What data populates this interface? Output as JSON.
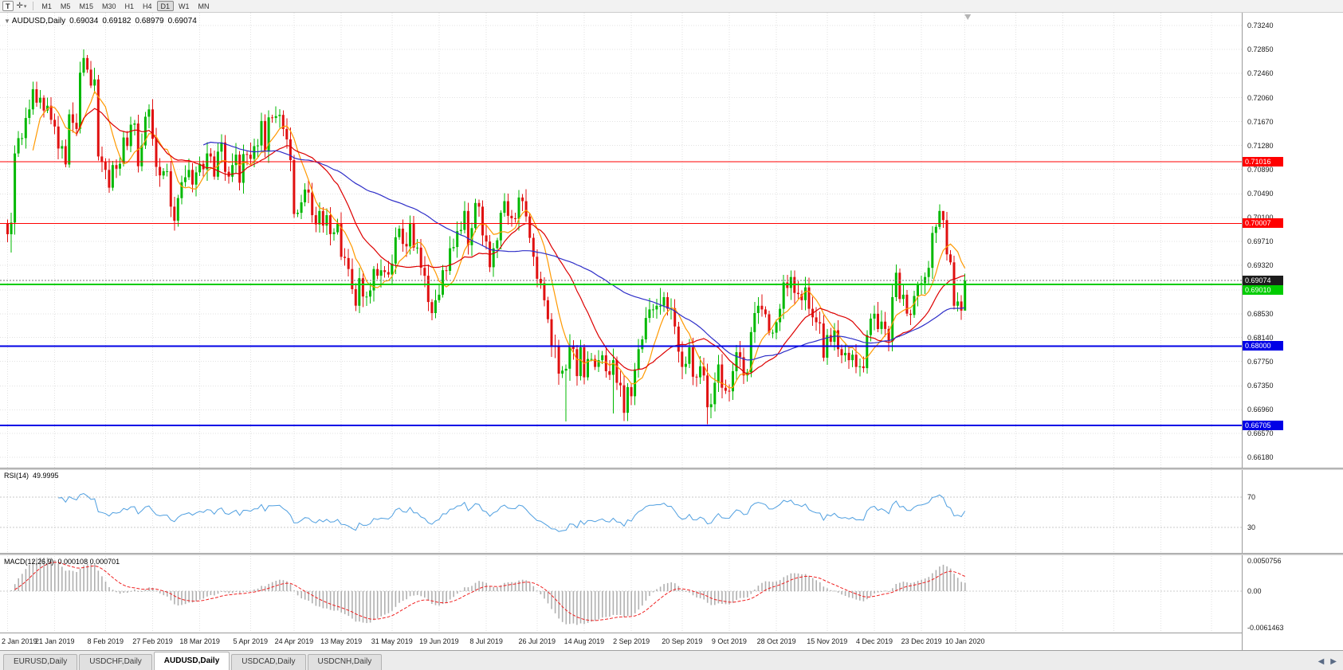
{
  "toolbar": {
    "tool_button_label": "T",
    "timeframes": [
      "M1",
      "M5",
      "M15",
      "M30",
      "H1",
      "H4",
      "D1",
      "W1",
      "MN"
    ],
    "active_timeframe": "D1"
  },
  "icons": {
    "crosshair_glyph": "✛",
    "caret_glyph": "▾",
    "collapse_glyph": "▼",
    "scroll_left_glyph": "◀",
    "scroll_right_glyph": "▶"
  },
  "chart_header": {
    "symbol": "AUDUSD,Daily",
    "open": "0.69034",
    "high": "0.69182",
    "low": "0.68979",
    "close": "0.69074"
  },
  "rsi_panel": {
    "name": "RSI(14)",
    "value": "49.9995",
    "level_labels": [
      "70",
      "30"
    ]
  },
  "macd_panel": {
    "name": "MACD(12,26,9)",
    "values": "0.000108 0.000701"
  },
  "tabs": {
    "items": [
      {
        "label": "EURUSD,Daily",
        "active": false
      },
      {
        "label": "USDCHF,Daily",
        "active": false
      },
      {
        "label": "AUDUSD,Daily",
        "active": true
      },
      {
        "label": "USDCAD,Daily",
        "active": false
      },
      {
        "label": "USDCNH,Daily",
        "active": false
      }
    ]
  },
  "colors": {
    "up": "#00b800",
    "down": "#e01010",
    "grid": "#e2e2e2",
    "rsi_line": "#4f9fe0",
    "macd_hist": "#b0b0b0",
    "macd_signal": "#f02020",
    "bid_line": "#777777",
    "bid_tag": "#1c1c1c"
  },
  "chart_data": {
    "type": "candlestick",
    "symbol": "AUDUSD",
    "timeframe": "Daily",
    "title": "AUDUSD,Daily 0.69034 0.69182 0.68979 0.69074",
    "price_range": [
      0.66,
      0.7345
    ],
    "y_axis_labels": [
      "0.73240",
      "0.72850",
      "0.72460",
      "0.72060",
      "0.71670",
      "0.71280",
      "0.70890",
      "0.70490",
      "0.70100",
      "0.69710",
      "0.69320",
      "0.68920",
      "0.68530",
      "0.68140",
      "0.67750",
      "0.67350",
      "0.66960",
      "0.66570",
      "0.66180"
    ],
    "x_labels": [
      {
        "text": "2 Jan 2019",
        "day": 0
      },
      {
        "text": "21 Jan 2019",
        "day": 13
      },
      {
        "text": "8 Feb 2019",
        "day": 27
      },
      {
        "text": "27 Feb 2019",
        "day": 40
      },
      {
        "text": "18 Mar 2019",
        "day": 53
      },
      {
        "text": "5 Apr 2019",
        "day": 67
      },
      {
        "text": "24 Apr 2019",
        "day": 79
      },
      {
        "text": "13 May 2019",
        "day": 92
      },
      {
        "text": "31 May 2019",
        "day": 106
      },
      {
        "text": "19 Jun 2019",
        "day": 119
      },
      {
        "text": "8 Jul 2019",
        "day": 132
      },
      {
        "text": "26 Jul 2019",
        "day": 146
      },
      {
        "text": "14 Aug 2019",
        "day": 159
      },
      {
        "text": "2 Sep 2019",
        "day": 172
      },
      {
        "text": "20 Sep 2019",
        "day": 186
      },
      {
        "text": "9 Oct 2019",
        "day": 199
      },
      {
        "text": "28 Oct 2019",
        "day": 212
      },
      {
        "text": "15 Nov 2019",
        "day": 226
      },
      {
        "text": "4 Dec 2019",
        "day": 239
      },
      {
        "text": "23 Dec 2019",
        "day": 252
      },
      {
        "text": "10 Jan 2020",
        "day": 264
      }
    ],
    "future_grid_days": [
      278,
      291,
      305,
      318,
      332
    ],
    "first_open": 0.7,
    "closes": [
      0.6983,
      0.7002,
      0.7115,
      0.714,
      0.714,
      0.7173,
      0.7187,
      0.722,
      0.7198,
      0.7206,
      0.7185,
      0.7193,
      0.717,
      0.7159,
      0.7123,
      0.7127,
      0.7097,
      0.7179,
      0.7165,
      0.7155,
      0.7247,
      0.7271,
      0.7252,
      0.7226,
      0.7236,
      0.711,
      0.7101,
      0.7088,
      0.7059,
      0.7096,
      0.709,
      0.7098,
      0.7141,
      0.7127,
      0.7162,
      0.7164,
      0.7094,
      0.7128,
      0.7175,
      0.7187,
      0.7139,
      0.7093,
      0.7079,
      0.7086,
      0.7086,
      0.7028,
      0.7005,
      0.7042,
      0.7068,
      0.7076,
      0.7088,
      0.7064,
      0.7084,
      0.7098,
      0.7089,
      0.7115,
      0.711,
      0.7077,
      0.7118,
      0.7133,
      0.7085,
      0.7077,
      0.7096,
      0.7113,
      0.7067,
      0.7114,
      0.7113,
      0.7106,
      0.7127,
      0.7128,
      0.7168,
      0.7118,
      0.7174,
      0.7173,
      0.7176,
      0.7178,
      0.7155,
      0.7138,
      0.7104,
      0.7016,
      0.7018,
      0.7035,
      0.7056,
      0.7051,
      0.7014,
      0.6999,
      0.7021,
      0.6997,
      0.7014,
      0.6983,
      0.6986,
      0.7,
      0.6946,
      0.6944,
      0.6926,
      0.6893,
      0.6866,
      0.6911,
      0.6881,
      0.6881,
      0.6891,
      0.6926,
      0.6915,
      0.6924,
      0.6921,
      0.6917,
      0.6935,
      0.6978,
      0.6992,
      0.6967,
      0.6963,
      0.7,
      0.6961,
      0.6961,
      0.6928,
      0.6915,
      0.6872,
      0.6854,
      0.6875,
      0.6884,
      0.6924,
      0.6923,
      0.696,
      0.6962,
      0.6988,
      0.699,
      0.7021,
      0.6965,
      0.6993,
      0.7034,
      0.7028,
      0.6981,
      0.6971,
      0.6929,
      0.696,
      0.6973,
      0.7018,
      0.7037,
      0.7013,
      0.7009,
      0.7008,
      0.7043,
      0.7037,
      0.7012,
      0.6977,
      0.6946,
      0.691,
      0.6903,
      0.6875,
      0.6844,
      0.68,
      0.6799,
      0.6755,
      0.676,
      0.6763,
      0.68,
      0.6795,
      0.6751,
      0.6798,
      0.6749,
      0.6779,
      0.6779,
      0.6766,
      0.6777,
      0.6785,
      0.6759,
      0.6753,
      0.6777,
      0.674,
      0.6736,
      0.6691,
      0.6733,
      0.6718,
      0.6762,
      0.6795,
      0.6811,
      0.6846,
      0.686,
      0.686,
      0.6866,
      0.6866,
      0.688,
      0.6861,
      0.6862,
      0.6832,
      0.6791,
      0.6766,
      0.6771,
      0.6798,
      0.675,
      0.6749,
      0.6767,
      0.6752,
      0.67,
      0.6705,
      0.674,
      0.677,
      0.6732,
      0.6727,
      0.6726,
      0.6759,
      0.679,
      0.6782,
      0.6752,
      0.6757,
      0.6823,
      0.6854,
      0.6866,
      0.686,
      0.6852,
      0.6822,
      0.6822,
      0.6839,
      0.6861,
      0.6904,
      0.6895,
      0.6913,
      0.6887,
      0.6885,
      0.6875,
      0.6896,
      0.6861,
      0.6847,
      0.6839,
      0.6837,
      0.6781,
      0.6818,
      0.6807,
      0.6826,
      0.6795,
      0.6785,
      0.6789,
      0.6777,
      0.6786,
      0.6766,
      0.6767,
      0.6764,
      0.6818,
      0.6845,
      0.6853,
      0.6828,
      0.684,
      0.6828,
      0.6808,
      0.688,
      0.692,
      0.6877,
      0.6884,
      0.6853,
      0.6851,
      0.6882,
      0.69,
      0.6903,
      0.6913,
      0.6928,
      0.6985,
      0.6995,
      0.7021,
      0.7006,
      0.695,
      0.6937,
      0.6866,
      0.6873,
      0.6858,
      0.6907
    ],
    "wick_overrides": {
      "1": {
        "low": 0.6953
      },
      "21": {
        "high": 0.7285
      },
      "141": {
        "high": 0.7055
      },
      "154": {
        "low": 0.6677
      },
      "167": {
        "low": 0.669
      },
      "180": {
        "high": 0.6895
      },
      "193": {
        "low": 0.6672
      },
      "257": {
        "high": 0.7032
      },
      "258": {
        "high": 0.7016
      },
      "264": {
        "high": 0.69182,
        "low": 0.68979
      }
    },
    "moving_averages": [
      {
        "period": 8,
        "color": "#ff9900"
      },
      {
        "period": 20,
        "color": "#dd0000"
      },
      {
        "period": 55,
        "color": "#2e2ec8"
      }
    ],
    "levels": [
      {
        "price": 0.71016,
        "label": "0.71016",
        "color": "#ff0000",
        "thickness": 1
      },
      {
        "price": 0.70007,
        "label": "0.70007",
        "color": "#ff0000",
        "thickness": 1
      },
      {
        "price": 0.6901,
        "label": "0.69010",
        "color": "#00cc00",
        "thickness": 2
      },
      {
        "price": 0.68,
        "label": "0.68000",
        "color": "#0000e6",
        "thickness": 2
      },
      {
        "price": 0.66705,
        "label": "0.66705",
        "color": "#0000e6",
        "thickness": 2
      }
    ],
    "bid": {
      "price": 0.69074,
      "label": "0.69074"
    },
    "indicators": [
      {
        "type": "RSI",
        "period": 14,
        "current": "49.9995",
        "levels": [
          70,
          30
        ]
      },
      {
        "type": "MACD",
        "fast": 12,
        "slow": 26,
        "signal": 9,
        "values": [
          "0.000108",
          "0.000701"
        ],
        "scale_labels": [
          "0.0050756",
          "0.00",
          "-0.0061463"
        ]
      }
    ]
  }
}
